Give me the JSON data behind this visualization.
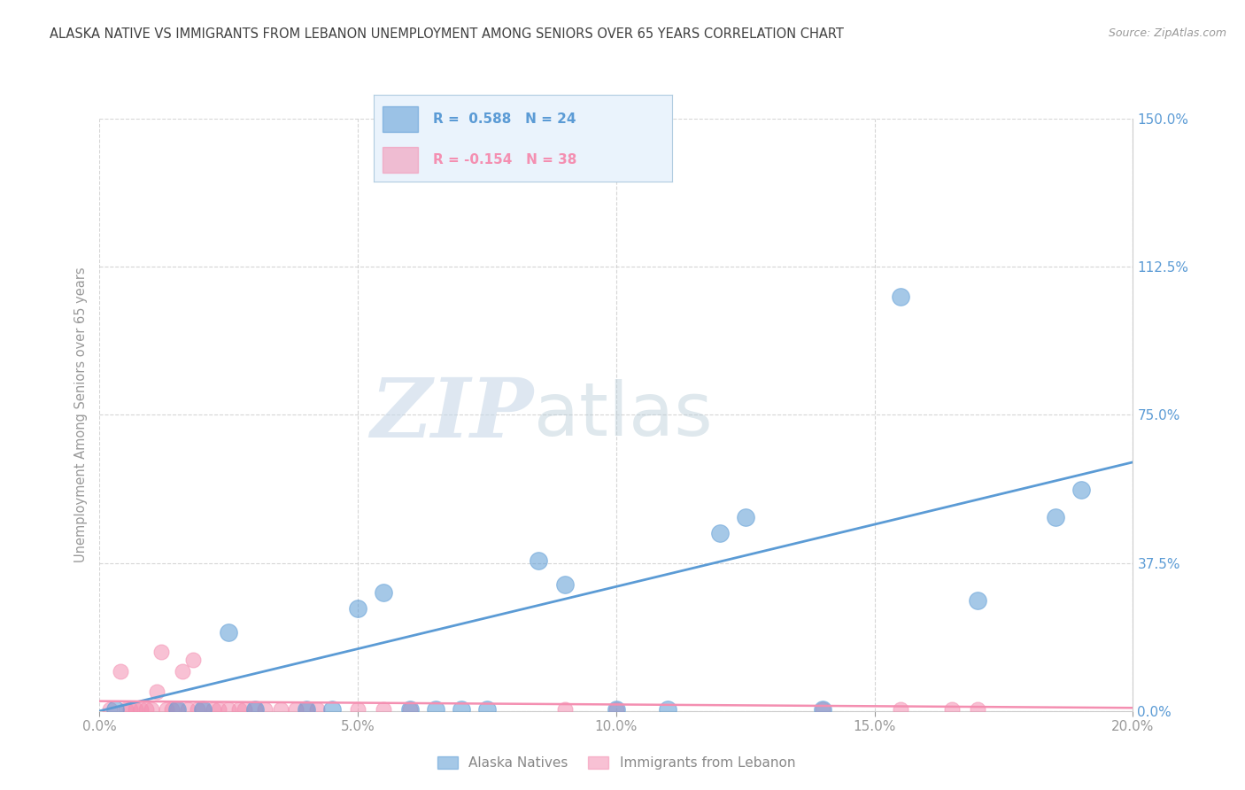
{
  "title": "ALASKA NATIVE VS IMMIGRANTS FROM LEBANON UNEMPLOYMENT AMONG SENIORS OVER 65 YEARS CORRELATION CHART",
  "source": "Source: ZipAtlas.com",
  "watermark_zip": "ZIP",
  "watermark_atlas": "atlas",
  "ylabel": "Unemployment Among Seniors over 65 years",
  "xlim": [
    0.0,
    0.2
  ],
  "ylim": [
    0.0,
    1.5
  ],
  "xticks": [
    0.0,
    0.05,
    0.1,
    0.15,
    0.2
  ],
  "xticklabels": [
    "0.0%",
    "5.0%",
    "10.0%",
    "15.0%",
    "20.0%"
  ],
  "yticks": [
    0.0,
    0.375,
    0.75,
    1.125,
    1.5
  ],
  "yticklabels": [
    "0.0%",
    "37.5%",
    "75.0%",
    "112.5%",
    "150.0%"
  ],
  "alaska_R": 0.588,
  "alaska_N": 24,
  "lebanon_R": -0.154,
  "lebanon_N": 38,
  "alaska_color": "#5b9bd5",
  "lebanon_color": "#f48fb1",
  "alaska_points_x": [
    0.003,
    0.015,
    0.02,
    0.025,
    0.03,
    0.04,
    0.045,
    0.05,
    0.055,
    0.06,
    0.065,
    0.07,
    0.075,
    0.085,
    0.09,
    0.1,
    0.11,
    0.12,
    0.125,
    0.14,
    0.155,
    0.17,
    0.185,
    0.19
  ],
  "alaska_points_y": [
    0.005,
    0.005,
    0.005,
    0.2,
    0.005,
    0.005,
    0.005,
    0.26,
    0.3,
    0.005,
    0.005,
    0.005,
    0.005,
    0.38,
    0.32,
    0.005,
    0.005,
    0.45,
    0.49,
    0.005,
    1.05,
    0.28,
    0.49,
    0.56
  ],
  "lebanon_points_x": [
    0.002,
    0.004,
    0.005,
    0.006,
    0.007,
    0.008,
    0.009,
    0.01,
    0.011,
    0.012,
    0.013,
    0.014,
    0.015,
    0.016,
    0.017,
    0.018,
    0.019,
    0.02,
    0.022,
    0.023,
    0.025,
    0.027,
    0.028,
    0.03,
    0.032,
    0.035,
    0.038,
    0.04,
    0.042,
    0.05,
    0.055,
    0.06,
    0.09,
    0.1,
    0.14,
    0.155,
    0.165,
    0.17
  ],
  "lebanon_points_y": [
    0.005,
    0.1,
    0.005,
    0.005,
    0.005,
    0.005,
    0.005,
    0.005,
    0.05,
    0.15,
    0.005,
    0.005,
    0.005,
    0.1,
    0.005,
    0.13,
    0.005,
    0.005,
    0.005,
    0.005,
    0.005,
    0.005,
    0.005,
    0.005,
    0.005,
    0.005,
    0.005,
    0.005,
    0.005,
    0.005,
    0.005,
    0.005,
    0.005,
    0.005,
    0.005,
    0.005,
    0.005,
    0.005
  ],
  "alaska_line_x": [
    0.0,
    0.2
  ],
  "alaska_line_y": [
    0.0,
    0.63
  ],
  "lebanon_line_x": [
    0.0,
    0.2
  ],
  "lebanon_line_y": [
    0.025,
    0.008
  ],
  "background_color": "#ffffff",
  "grid_color": "#cccccc",
  "title_color": "#404040",
  "axis_label_color": "#999999",
  "tick_color": "#5b9bd5",
  "legend_box_bg": "#ddeeff",
  "legend_box_border": "#aaccee",
  "marker_size_alaska": 200,
  "marker_size_lebanon": 150
}
